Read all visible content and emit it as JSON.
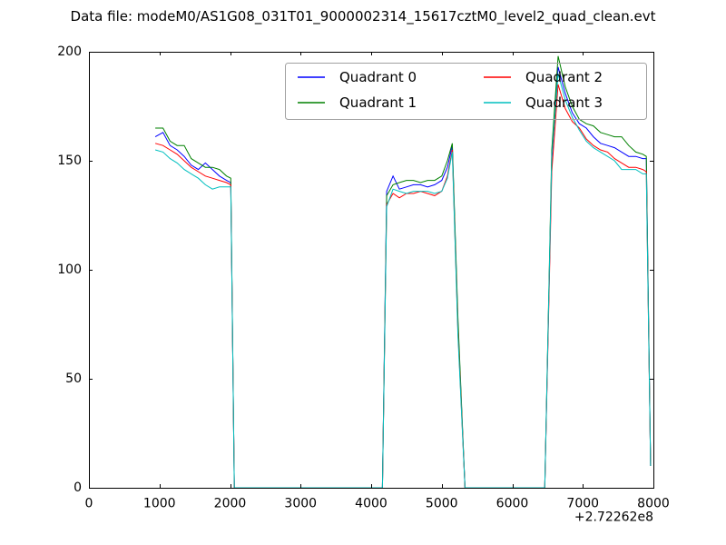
{
  "title": "Data file: modeM0/AS1G08_031T01_9000002314_15617cztM0_level2_quad_clean.evt",
  "colors": {
    "background": "#ffffff",
    "axis": "#000000",
    "legend_border": "#a0a0a0",
    "text": "#000000"
  },
  "chart_data": {
    "type": "line",
    "title": "Data file: modeM0/AS1G08_031T01_9000002314_15617cztM0_level2_quad_clean.evt",
    "xlabel": "",
    "ylabel": "",
    "xlim": [
      0,
      8000
    ],
    "ylim": [
      0,
      200
    ],
    "x_ticks": [
      0,
      1000,
      2000,
      3000,
      4000,
      5000,
      6000,
      7000,
      8000
    ],
    "y_ticks": [
      0,
      50,
      100,
      150,
      200
    ],
    "x_offset_label": "+2.72262e8",
    "grid": false,
    "legend_position": "upper center",
    "legend_columns": 2,
    "x": [
      940,
      1050,
      1150,
      1250,
      1350,
      1450,
      1550,
      1650,
      1750,
      1850,
      1950,
      2010,
      2060,
      4160,
      4220,
      4310,
      4400,
      4500,
      4600,
      4700,
      4800,
      4900,
      5000,
      5080,
      5150,
      5230,
      5330,
      6460,
      6560,
      6650,
      6750,
      6850,
      6950,
      7050,
      7150,
      7250,
      7350,
      7450,
      7550,
      7650,
      7750,
      7850,
      7900,
      7960
    ],
    "series": [
      {
        "name": "Quadrant 0",
        "color": "#0000ff",
        "values": [
          161,
          163,
          157,
          155,
          152,
          148,
          146,
          149,
          146,
          143,
          141,
          140,
          0,
          0,
          136,
          143,
          137,
          138,
          139,
          139,
          138,
          139,
          141,
          147,
          157,
          75,
          0,
          0,
          150,
          193,
          181,
          172,
          167,
          165,
          161,
          158,
          157,
          156,
          154,
          152,
          152,
          151,
          151,
          10
        ]
      },
      {
        "name": "Quadrant 1",
        "color": "#008000",
        "values": [
          165,
          165,
          159,
          157,
          157,
          151,
          149,
          147,
          147,
          146,
          143,
          142,
          0,
          0,
          134,
          139,
          140,
          141,
          141,
          140,
          141,
          141,
          143,
          150,
          158,
          78,
          0,
          0,
          155,
          198,
          184,
          175,
          169,
          167,
          166,
          163,
          162,
          161,
          161,
          157,
          154,
          153,
          152,
          10
        ]
      },
      {
        "name": "Quadrant 2",
        "color": "#ff0000",
        "values": [
          158,
          157,
          155,
          153,
          150,
          147,
          145,
          143,
          142,
          141,
          140,
          139,
          0,
          0,
          130,
          135,
          133,
          135,
          135,
          136,
          135,
          134,
          136,
          143,
          155,
          72,
          0,
          0,
          145,
          185,
          174,
          168,
          165,
          160,
          157,
          155,
          154,
          151,
          149,
          147,
          147,
          146,
          145,
          10
        ]
      },
      {
        "name": "Quadrant 3",
        "color": "#00bfbf",
        "values": [
          155,
          154,
          151,
          149,
          146,
          144,
          142,
          139,
          137,
          138,
          138,
          138,
          0,
          0,
          129,
          137,
          136,
          135,
          136,
          136,
          136,
          135,
          136,
          142,
          154,
          70,
          0,
          0,
          152,
          190,
          178,
          170,
          164,
          159,
          156,
          154,
          152,
          150,
          146,
          146,
          146,
          144,
          144,
          10
        ]
      }
    ]
  }
}
